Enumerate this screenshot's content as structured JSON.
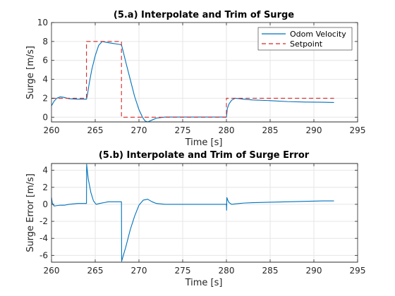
{
  "chart_data": [
    {
      "type": "line",
      "title": "(5.a) Interpolate and Trim of Surge",
      "xlabel": "Time [s]",
      "ylabel": "Surge [m/s]",
      "xlim": [
        260,
        295
      ],
      "ylim": [
        -0.5,
        10
      ],
      "xticks": [
        260,
        265,
        270,
        275,
        280,
        285,
        290,
        295
      ],
      "yticks": [
        0,
        2,
        4,
        6,
        8,
        10
      ],
      "grid": true,
      "legend_position": "top-right",
      "series": [
        {
          "name": "Odom Velocity",
          "color": "#0072bd",
          "style": "solid",
          "x": [
            260.0,
            260.3,
            260.6,
            261.0,
            261.4,
            262.0,
            263.0,
            263.8,
            264.0,
            264.1,
            264.3,
            264.6,
            265.0,
            265.4,
            265.8,
            266.3,
            267.0,
            267.7,
            268.0,
            268.1,
            268.5,
            269.0,
            269.5,
            270.0,
            270.4,
            270.7,
            271.0,
            271.5,
            272.0,
            273.0,
            275.0,
            278.0,
            280.0,
            280.05,
            280.1,
            280.3,
            280.6,
            281.0,
            281.5,
            282.0,
            283.0,
            285.0,
            287.0,
            289.0,
            291.0,
            292.3
          ],
          "y": [
            1.2,
            1.7,
            2.0,
            2.15,
            2.1,
            1.95,
            1.9,
            1.9,
            1.9,
            2.3,
            3.5,
            5.0,
            6.5,
            7.6,
            8.0,
            7.9,
            7.8,
            7.7,
            7.65,
            7.3,
            5.8,
            4.0,
            2.2,
            0.8,
            0.0,
            -0.4,
            -0.5,
            -0.3,
            -0.1,
            0.02,
            0.02,
            0.02,
            0.02,
            0.4,
            0.9,
            1.4,
            1.8,
            2.0,
            1.95,
            1.9,
            1.82,
            1.75,
            1.65,
            1.6,
            1.58,
            1.55
          ]
        },
        {
          "name": "Setpoint",
          "color": "#d62728",
          "style": "dashed",
          "x": [
            260.0,
            264.0,
            264.0,
            268.0,
            268.0,
            280.0,
            280.0,
            292.3
          ],
          "y": [
            2,
            2,
            8,
            8,
            0,
            0,
            2,
            2
          ]
        }
      ]
    },
    {
      "type": "line",
      "title": "(5.b) Interpolate and Trim of Surge Error",
      "xlabel": "Time [s]",
      "ylabel": "Surge Error [m/s]",
      "xlim": [
        260,
        295
      ],
      "ylim": [
        -6.8,
        4.8
      ],
      "xticks": [
        260,
        265,
        270,
        275,
        280,
        285,
        290,
        295
      ],
      "yticks": [
        -6,
        -4,
        -2,
        0,
        2,
        4
      ],
      "grid": true,
      "series": [
        {
          "name": "",
          "color": "#0072bd",
          "style": "solid",
          "x": [
            260.0,
            260.1,
            260.3,
            260.6,
            261.0,
            261.5,
            262.0,
            263.0,
            263.8,
            263.95,
            264.0,
            264.02,
            264.05,
            264.2,
            264.5,
            264.8,
            265.1,
            265.5,
            266.0,
            266.5,
            267.0,
            267.5,
            267.9,
            268.0,
            268.02,
            268.1,
            268.5,
            269.0,
            269.5,
            270.0,
            270.5,
            271.0,
            271.5,
            272.0,
            273.0,
            275.0,
            278.0,
            279.9,
            280.0,
            280.02,
            280.05,
            280.15,
            280.3,
            280.6,
            281.0,
            281.5,
            282.0,
            283.0,
            285.0,
            287.0,
            289.0,
            291.0,
            292.3
          ],
          "y": [
            0.8,
            0.1,
            -0.2,
            -0.15,
            -0.1,
            -0.1,
            0.0,
            0.1,
            0.1,
            0.1,
            0.1,
            4.7,
            4.4,
            3.0,
            1.4,
            0.4,
            0.0,
            0.1,
            0.2,
            0.3,
            0.3,
            0.3,
            0.3,
            0.3,
            -6.7,
            -6.4,
            -5.0,
            -3.0,
            -1.4,
            -0.1,
            0.5,
            0.6,
            0.3,
            0.1,
            0.0,
            0.0,
            0.0,
            0.0,
            0.0,
            -0.7,
            0.8,
            0.5,
            0.2,
            0.0,
            0.05,
            0.1,
            0.15,
            0.2,
            0.25,
            0.3,
            0.35,
            0.4,
            0.4
          ]
        }
      ]
    }
  ]
}
